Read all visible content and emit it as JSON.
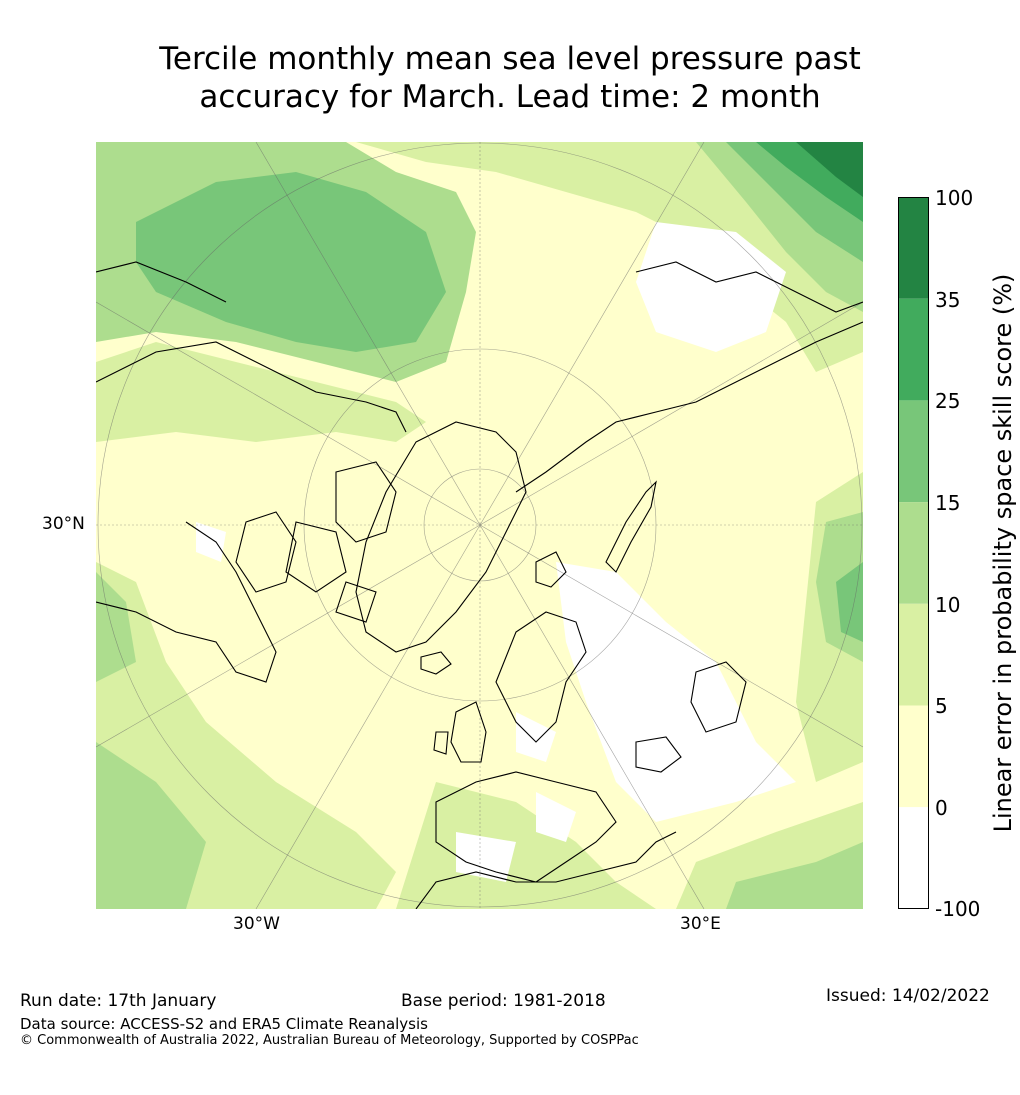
{
  "title": {
    "line1": "Tercile monthly mean sea level pressure past",
    "line2": "accuracy for March. Lead time: 2 month"
  },
  "map": {
    "projection": "north-polar-stereographic",
    "lat_label": "30°N",
    "lon_labels": [
      "30°W",
      "30°E"
    ],
    "dominant_region": "Europe / North Atlantic / Arctic"
  },
  "colorbar": {
    "title": "Linear error in probability space skill score (%)",
    "ticks": [
      "100",
      "35",
      "25",
      "15",
      "10",
      "5",
      "0",
      "-100"
    ],
    "bins": [
      {
        "from": "35",
        "to": "100",
        "color": "#238443"
      },
      {
        "from": "25",
        "to": "35",
        "color": "#41ab5d"
      },
      {
        "from": "15",
        "to": "25",
        "color": "#78c679"
      },
      {
        "from": "10",
        "to": "15",
        "color": "#addd8e"
      },
      {
        "from": "5",
        "to": "10",
        "color": "#d9f0a3"
      },
      {
        "from": "0",
        "to": "5",
        "color": "#ffffcc"
      },
      {
        "from": "-100",
        "to": "0",
        "color": "#ffffff"
      }
    ]
  },
  "footer": {
    "run_date": "Run date: 17th January",
    "base_period": "Base period: 1981-2018",
    "issued": "Issued: 14/02/2022",
    "data_source": "Data source: ACCESS-S2 and ERA5 Climate Reanalysis",
    "copyright": "© Commonwealth of Australia 2022, Australian Bureau of Meteorology, Supported by COSPPac"
  }
}
